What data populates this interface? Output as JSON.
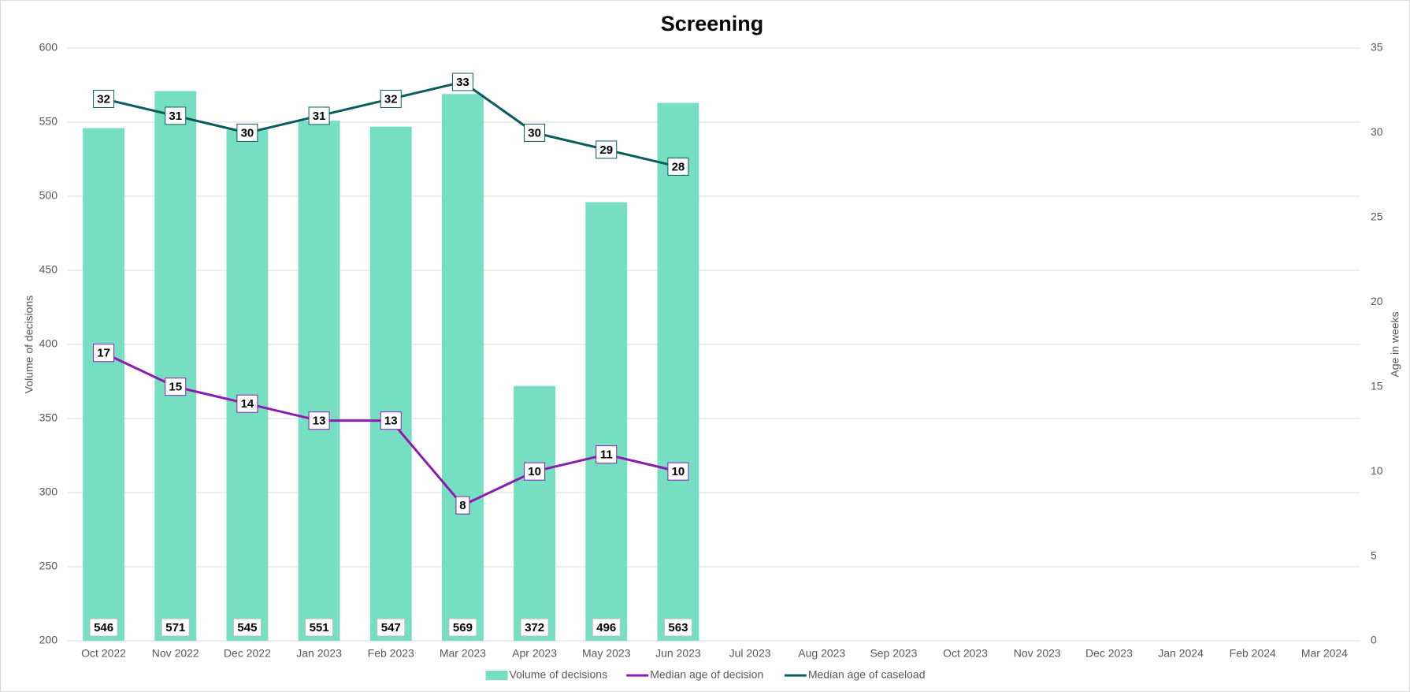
{
  "chart_data": {
    "type": "bar",
    "title": "Screening",
    "categories": [
      "Oct 2022",
      "Nov 2022",
      "Dec 2022",
      "Jan 2023",
      "Feb 2023",
      "Mar 2023",
      "Apr 2023",
      "May 2023",
      "Jun 2023",
      "Jul 2023",
      "Aug 2023",
      "Sep 2023",
      "Oct 2023",
      "Nov 2023",
      "Dec 2023",
      "Jan 2024",
      "Feb 2024",
      "Mar 2024"
    ],
    "series": [
      {
        "name": "Volume of decisions",
        "type": "bar",
        "color": "#76dfc1",
        "values": [
          546,
          571,
          545,
          551,
          547,
          569,
          372,
          496,
          563,
          null,
          null,
          null,
          null,
          null,
          null,
          null,
          null,
          null
        ]
      },
      {
        "name": "Median age of decision",
        "type": "line",
        "axis": "y2",
        "color": "#8e1bb0",
        "values": [
          17,
          15,
          14,
          13,
          13,
          8,
          10,
          11,
          10,
          null,
          null,
          null,
          null,
          null,
          null,
          null,
          null,
          null
        ]
      },
      {
        "name": "Median age of caseload",
        "type": "line",
        "axis": "y2",
        "color": "#0b5a60",
        "values": [
          32,
          31,
          30,
          31,
          32,
          33,
          30,
          29,
          28,
          null,
          null,
          null,
          null,
          null,
          null,
          null,
          null,
          null
        ]
      }
    ],
    "ylabel": "Volume of decisions",
    "y2label": "Age in weeks",
    "ylim": [
      200,
      600
    ],
    "yticks": [
      200,
      250,
      300,
      350,
      400,
      450,
      500,
      550,
      600
    ],
    "y2lim": [
      0,
      35
    ],
    "y2ticks": [
      0,
      5,
      10,
      15,
      20,
      25,
      30,
      35
    ],
    "grid": true,
    "legend": "bottom"
  }
}
